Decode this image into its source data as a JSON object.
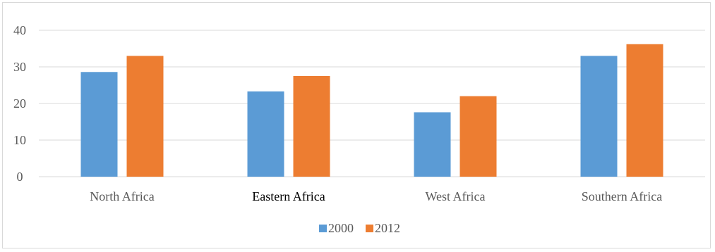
{
  "chart_data": {
    "type": "bar",
    "title": "",
    "xlabel": "",
    "ylabel": "",
    "categories": [
      "North Africa",
      "Eastern Africa",
      "West Africa",
      "Southern Africa"
    ],
    "series": [
      {
        "name": "2000",
        "color": "#5b9bd5",
        "values": [
          28.6,
          23.3,
          17.6,
          33.0
        ]
      },
      {
        "name": "2012",
        "color": "#ed7d31",
        "values": [
          33.0,
          27.5,
          22.0,
          36.2
        ]
      }
    ],
    "ylim": [
      0,
      40
    ],
    "yticks": [
      "0",
      "10",
      "20",
      "30",
      "40"
    ],
    "grid": true,
    "legend_position": "bottom",
    "gridline_color": "#d9d9d9"
  }
}
